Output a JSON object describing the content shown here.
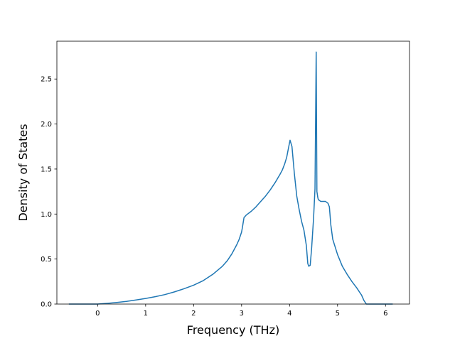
{
  "chart_data": {
    "type": "line",
    "title": "",
    "xlabel": "Frequency (THz)",
    "ylabel": "Density of States",
    "xlim": [
      -0.85,
      6.5
    ],
    "ylim": [
      0,
      2.92
    ],
    "xticks": [
      0,
      1,
      2,
      3,
      4,
      5,
      6
    ],
    "yticks": [
      0.0,
      0.5,
      1.0,
      1.5,
      2.0,
      2.5
    ],
    "xtick_labels": [
      "0",
      "1",
      "2",
      "3",
      "4",
      "5",
      "6"
    ],
    "ytick_labels": [
      "0.0",
      "0.5",
      "1.0",
      "1.5",
      "2.0",
      "2.5"
    ],
    "grid": false,
    "legend": "none",
    "series": [
      {
        "color": "#1f77b4",
        "x": [
          -0.6,
          -0.3,
          0.0,
          0.2,
          0.4,
          0.6,
          0.8,
          1.0,
          1.2,
          1.4,
          1.6,
          1.8,
          2.0,
          2.2,
          2.4,
          2.6,
          2.7,
          2.8,
          2.9,
          2.95,
          3.0,
          3.02,
          3.05,
          3.1,
          3.2,
          3.3,
          3.4,
          3.5,
          3.6,
          3.7,
          3.8,
          3.85,
          3.9,
          3.94,
          3.98,
          4.01,
          4.05,
          4.1,
          4.15,
          4.2,
          4.25,
          4.3,
          4.35,
          4.38,
          4.4,
          4.43,
          4.46,
          4.5,
          4.53,
          4.555,
          4.57,
          4.59,
          4.6,
          4.65,
          4.7,
          4.75,
          4.8,
          4.83,
          4.86,
          4.9,
          5.0,
          5.1,
          5.2,
          5.3,
          5.4,
          5.5,
          5.55,
          5.6,
          5.7,
          5.8,
          6.15
        ],
        "y": [
          0.0,
          0.0,
          0.0,
          0.008,
          0.018,
          0.03,
          0.045,
          0.062,
          0.082,
          0.105,
          0.135,
          0.17,
          0.21,
          0.26,
          0.33,
          0.42,
          0.48,
          0.56,
          0.66,
          0.72,
          0.8,
          0.86,
          0.96,
          0.99,
          1.03,
          1.08,
          1.14,
          1.2,
          1.27,
          1.35,
          1.44,
          1.49,
          1.56,
          1.63,
          1.74,
          1.82,
          1.75,
          1.45,
          1.2,
          1.05,
          0.92,
          0.82,
          0.65,
          0.45,
          0.42,
          0.43,
          0.62,
          0.95,
          1.28,
          2.8,
          1.25,
          1.18,
          1.16,
          1.14,
          1.14,
          1.14,
          1.12,
          1.08,
          0.88,
          0.72,
          0.55,
          0.42,
          0.33,
          0.25,
          0.18,
          0.1,
          0.04,
          0.0,
          0.0,
          0.0,
          0.0
        ]
      }
    ]
  }
}
